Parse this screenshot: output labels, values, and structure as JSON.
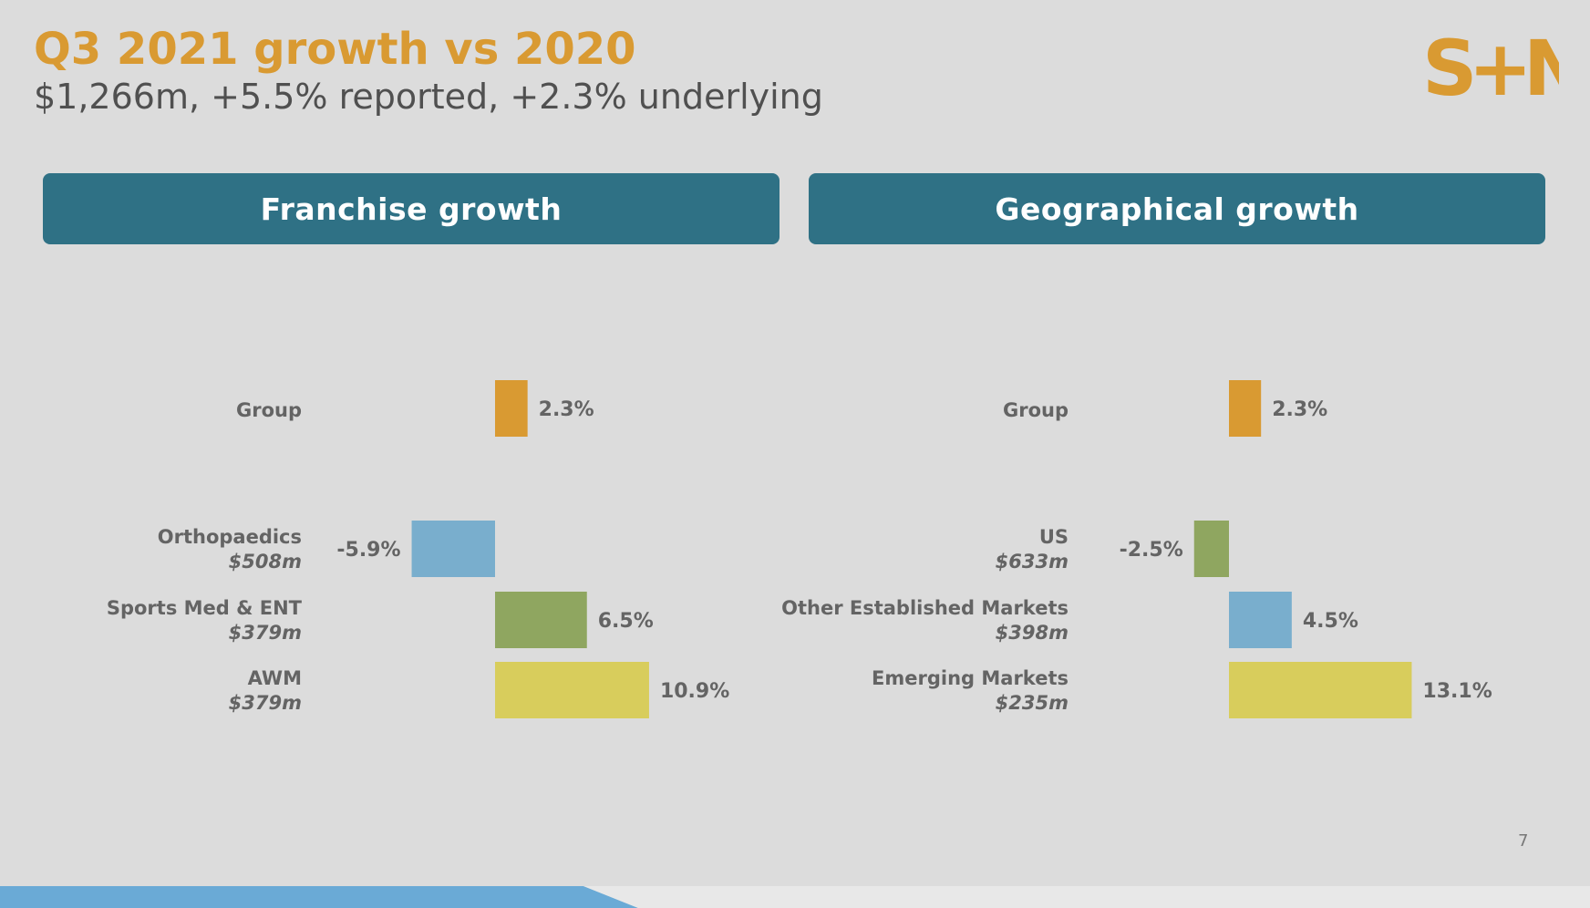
{
  "slide": {
    "title": "Q3 2021 growth vs 2020",
    "subtitle": "$1,266m, +5.5% reported, +2.3% underlying",
    "page_number": "7",
    "logo_text": "S+N"
  },
  "colors": {
    "title": "#d99a32",
    "header_bg": "#2f7185",
    "group": "#d99a32",
    "blue": "#79aecd",
    "green": "#8fa660",
    "yellow": "#d8cd5c",
    "label": "#646464",
    "background": "#dcdcdc"
  },
  "chart_data": [
    {
      "type": "bar",
      "orientation": "horizontal",
      "title": "Franchise growth",
      "categories": [
        {
          "name": "Group",
          "sub": ""
        },
        {
          "name": "Orthopaedics",
          "sub": "$508m"
        },
        {
          "name": "Sports Med & ENT",
          "sub": "$379m"
        },
        {
          "name": "AWM",
          "sub": "$379m"
        }
      ],
      "values": [
        2.3,
        -5.9,
        6.5,
        10.9
      ],
      "value_labels": [
        "2.3%",
        "-5.9%",
        "6.5%",
        "10.9%"
      ],
      "bar_colors": [
        "#d99a32",
        "#79aecd",
        "#8fa660",
        "#d8cd5c"
      ],
      "unit": "%",
      "grid": false,
      "legend": "none"
    },
    {
      "type": "bar",
      "orientation": "horizontal",
      "title": "Geographical growth",
      "categories": [
        {
          "name": "Group",
          "sub": ""
        },
        {
          "name": "US",
          "sub": "$633m"
        },
        {
          "name": "Other Established Markets",
          "sub": "$398m"
        },
        {
          "name": "Emerging Markets",
          "sub": "$235m"
        }
      ],
      "values": [
        2.3,
        -2.5,
        4.5,
        13.1
      ],
      "value_labels": [
        "2.3%",
        "-2.5%",
        "4.5%",
        "13.1%"
      ],
      "bar_colors": [
        "#d99a32",
        "#8fa660",
        "#79aecd",
        "#d8cd5c"
      ],
      "unit": "%",
      "grid": false,
      "legend": "none"
    }
  ]
}
